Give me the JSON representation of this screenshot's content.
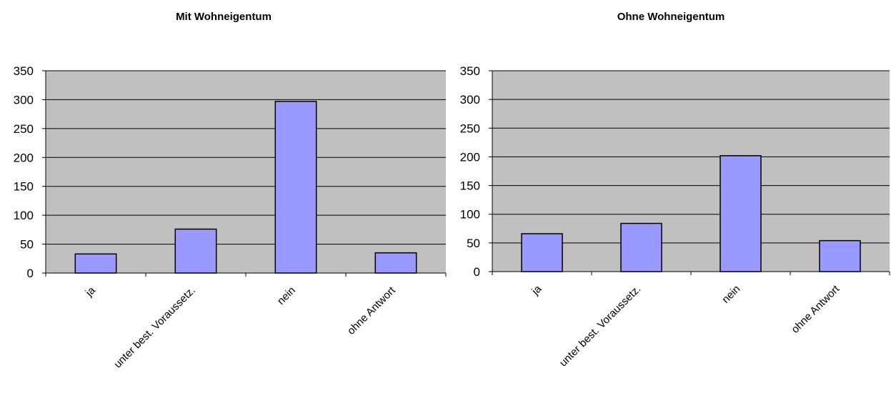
{
  "colors": {
    "plot_background": "#c0c0c0",
    "bar_fill": "#9999ff",
    "bar_stroke": "#000000",
    "gridline": "#000000"
  },
  "chart_data": [
    {
      "type": "bar",
      "title": "Mit Wohneigentum",
      "categories": [
        "ja",
        "unter best. Voraussetz.",
        "nein",
        "ohne Antwort"
      ],
      "values": [
        33,
        76,
        297,
        35
      ],
      "xlabel": "",
      "ylabel": "",
      "ylim": [
        0,
        350
      ],
      "yticks": [
        0,
        50,
        100,
        150,
        200,
        250,
        300,
        350
      ],
      "grid": true,
      "legend": "none"
    },
    {
      "type": "bar",
      "title": "Ohne Wohneigentum",
      "categories": [
        "ja",
        "unter best. Voraussetz.",
        "nein",
        "ohne Antwort"
      ],
      "values": [
        66,
        84,
        202,
        54
      ],
      "xlabel": "",
      "ylabel": "",
      "ylim": [
        0,
        350
      ],
      "yticks": [
        0,
        50,
        100,
        150,
        200,
        250,
        300,
        350
      ],
      "grid": true,
      "legend": "none"
    }
  ]
}
